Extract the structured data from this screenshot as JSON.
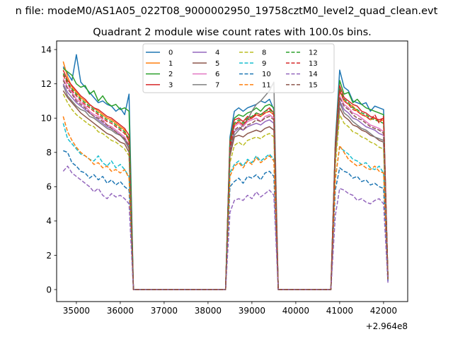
{
  "chart_data": {
    "type": "line",
    "suptitle": "n file: modeM0/AS1A05_022T08_9000002950_19758cztM0_level2_quad_clean.evt",
    "title": "Quadrant 2 module wise count rates with 100.0s bins.",
    "xlabel": "",
    "ylabel": "",
    "x_offset_label": "+2.964e8",
    "xlim": [
      34550,
      42550
    ],
    "ylim": [
      -0.7,
      14.5
    ],
    "xticks": [
      35000,
      36000,
      37000,
      38000,
      39000,
      40000,
      41000,
      42000
    ],
    "xtick_labels": [
      "35000",
      "36000",
      "37000",
      "38000",
      "39000",
      "40000",
      "41000",
      "42000"
    ],
    "yticks": [
      0,
      2,
      4,
      6,
      8,
      10,
      12,
      14
    ],
    "ytick_labels": [
      "0",
      "2",
      "4",
      "6",
      "8",
      "10",
      "12",
      "14"
    ],
    "grid": false,
    "legend_position": "upper center",
    "legend_columns": 4,
    "segments": [
      {
        "start": 34700,
        "end": 36200,
        "step": 100
      },
      {
        "start": 38500,
        "end": 39500,
        "step": 100
      },
      {
        "start": 40900,
        "end": 42000,
        "step": 100
      }
    ],
    "gap_x": [
      [
        36300,
        38400
      ],
      [
        39600,
        40800
      ]
    ],
    "end_x": 42100,
    "series": [
      {
        "name": "0",
        "color": "#1f77b4",
        "dash": "solid",
        "seg": [
          [
            13.0,
            12.6,
            12.2,
            13.7,
            12.1,
            11.8,
            11.5,
            11.2,
            10.9,
            11.0,
            10.8,
            10.7,
            10.4,
            10.6,
            10.2,
            11.4
          ],
          [
            8.9,
            10.4,
            10.6,
            10.4,
            10.6,
            10.7,
            10.8,
            11.0,
            10.9,
            11.1,
            10.5
          ],
          [
            8.6,
            12.8,
            11.8,
            11.6,
            11.0,
            10.9,
            10.8,
            10.9,
            10.4,
            10.7,
            10.6,
            10.5
          ]
        ],
        "end": 0.5
      },
      {
        "name": "1",
        "color": "#ff7f0e",
        "dash": "solid",
        "seg": [
          [
            13.3,
            12.4,
            11.8,
            11.5,
            11.2,
            11.0,
            10.8,
            10.6,
            10.4,
            10.2,
            10.0,
            9.9,
            9.7,
            9.5,
            9.3,
            8.6
          ],
          [
            8.5,
            9.6,
            9.8,
            9.6,
            9.9,
            10.0,
            10.2,
            10.1,
            10.3,
            10.4,
            10.2
          ],
          [
            8.2,
            11.6,
            11.0,
            10.8,
            10.7,
            10.4,
            10.2,
            10.1,
            9.9,
            10.0,
            9.8,
            9.9
          ]
        ],
        "end": 0.6
      },
      {
        "name": "2",
        "color": "#2ca02c",
        "dash": "solid",
        "seg": [
          [
            12.9,
            12.7,
            12.5,
            12.0,
            11.8,
            11.9,
            11.4,
            11.6,
            11.0,
            11.3,
            10.9,
            10.7,
            10.8,
            10.5,
            10.6,
            10.4
          ],
          [
            8.7,
            10.0,
            10.2,
            10.1,
            10.3,
            10.4,
            10.6,
            10.4,
            10.7,
            10.8,
            10.6
          ],
          [
            8.4,
            12.2,
            11.4,
            11.5,
            10.9,
            11.1,
            10.8,
            10.6,
            10.5,
            10.4,
            10.3,
            10.2
          ]
        ],
        "end": 0.6
      },
      {
        "name": "3",
        "color": "#d62728",
        "dash": "solid",
        "seg": [
          [
            12.8,
            12.2,
            11.9,
            11.6,
            11.3,
            11.1,
            10.8,
            10.6,
            10.5,
            10.3,
            10.1,
            10.0,
            9.8,
            9.6,
            9.4,
            9.0
          ],
          [
            8.6,
            9.9,
            10.0,
            9.8,
            10.1,
            10.0,
            10.3,
            10.2,
            10.4,
            10.6,
            10.3
          ],
          [
            8.3,
            11.9,
            11.2,
            11.0,
            10.8,
            10.7,
            10.4,
            10.3,
            10.1,
            10.0,
            9.9,
            10.0
          ]
        ],
        "end": 0.7
      },
      {
        "name": "4",
        "color": "#9467bd",
        "dash": "solid",
        "seg": [
          [
            12.0,
            11.5,
            11.2,
            10.9,
            10.7,
            10.5,
            10.3,
            10.1,
            9.9,
            9.7,
            9.5,
            9.4,
            9.2,
            9.0,
            8.8,
            8.3
          ],
          [
            8.0,
            9.2,
            9.4,
            9.3,
            9.5,
            9.6,
            9.7,
            9.6,
            9.8,
            9.9,
            9.7
          ],
          [
            7.9,
            11.0,
            10.5,
            10.3,
            10.0,
            9.9,
            9.7,
            9.5,
            9.4,
            9.3,
            9.1,
            9.0
          ]
        ],
        "end": 0.6
      },
      {
        "name": "5",
        "color": "#8c564b",
        "dash": "solid",
        "seg": [
          [
            11.6,
            11.2,
            10.9,
            10.6,
            10.3,
            10.1,
            9.9,
            9.7,
            9.5,
            9.3,
            9.1,
            9.0,
            8.8,
            8.6,
            8.5,
            8.0
          ],
          [
            7.8,
            8.9,
            9.0,
            8.9,
            9.1,
            9.2,
            9.3,
            9.2,
            9.4,
            9.5,
            9.3
          ],
          [
            7.6,
            10.6,
            10.1,
            9.9,
            9.6,
            9.5,
            9.3,
            9.2,
            9.0,
            8.9,
            8.7,
            8.6
          ]
        ],
        "end": 0.6
      },
      {
        "name": "6",
        "color": "#e377c2",
        "dash": "solid",
        "seg": [
          [
            12.3,
            11.8,
            11.5,
            11.1,
            10.9,
            10.7,
            10.4,
            10.2,
            10.1,
            9.9,
            9.6,
            9.5,
            9.3,
            9.1,
            8.9,
            8.4
          ],
          [
            8.2,
            9.5,
            9.7,
            9.5,
            9.8,
            9.9,
            10.0,
            9.8,
            10.1,
            10.2,
            10.0
          ],
          [
            8.1,
            11.3,
            10.8,
            10.6,
            10.3,
            10.2,
            10.0,
            9.8,
            9.6,
            9.5,
            9.4,
            9.2
          ]
        ],
        "end": 0.6
      },
      {
        "name": "7",
        "color": "#7f7f7f",
        "dash": "solid",
        "seg": [
          [
            11.9,
            11.3,
            11.0,
            10.7,
            10.5,
            10.4,
            10.1,
            10.0,
            9.8,
            9.6,
            9.4,
            9.3,
            9.1,
            9.0,
            8.7,
            8.2
          ],
          [
            8.4,
            9.0,
            9.3,
            9.6,
            9.9,
            10.4,
            10.8,
            11.0,
            11.3,
            11.6,
            12.1
          ],
          [
            7.8,
            10.9,
            10.3,
            10.1,
            9.8,
            9.6,
            9.4,
            9.3,
            9.1,
            8.9,
            8.8,
            8.7
          ]
        ],
        "end": 0.6
      },
      {
        "name": "8",
        "color": "#bcbd22",
        "dash": "dashed",
        "seg": [
          [
            11.4,
            10.9,
            10.5,
            10.2,
            10.0,
            9.8,
            9.6,
            9.5,
            9.2,
            9.1,
            8.9,
            8.7,
            8.6,
            8.4,
            8.2,
            7.8
          ],
          [
            7.4,
            8.4,
            8.6,
            8.4,
            8.7,
            8.8,
            8.9,
            8.8,
            9.0,
            9.1,
            8.9
          ],
          [
            7.2,
            10.2,
            9.7,
            9.5,
            9.2,
            9.1,
            8.9,
            8.8,
            8.6,
            8.5,
            8.3,
            8.2
          ]
        ],
        "end": 0.6
      },
      {
        "name": "9",
        "color": "#17becf",
        "dash": "dashed",
        "seg": [
          [
            9.7,
            8.8,
            8.5,
            8.2,
            7.9,
            7.8,
            7.6,
            7.5,
            7.8,
            7.4,
            7.2,
            7.5,
            7.1,
            7.3,
            7.0,
            6.6
          ],
          [
            6.8,
            7.3,
            7.5,
            7.2,
            7.6,
            7.4,
            7.8,
            7.5,
            7.7,
            7.9,
            7.6
          ],
          [
            6.5,
            8.3,
            8.1,
            7.9,
            7.6,
            7.5,
            7.3,
            7.4,
            7.1,
            7.0,
            7.2,
            6.8
          ]
        ],
        "end": 0.5
      },
      {
        "name": "10",
        "color": "#1f77b4",
        "dash": "dashed",
        "seg": [
          [
            8.1,
            8.0,
            7.4,
            7.2,
            6.9,
            6.8,
            6.5,
            6.7,
            6.4,
            6.6,
            6.2,
            6.4,
            6.1,
            6.3,
            6.0,
            5.8
          ],
          [
            6.0,
            6.3,
            6.5,
            6.2,
            6.6,
            6.5,
            6.7,
            6.4,
            6.8,
            6.9,
            6.6
          ],
          [
            5.8,
            7.1,
            6.9,
            6.8,
            6.5,
            6.6,
            6.3,
            6.4,
            6.1,
            6.2,
            6.0,
            5.9
          ]
        ],
        "end": 0.5
      },
      {
        "name": "11",
        "color": "#ff7f0e",
        "dash": "dashed",
        "seg": [
          [
            10.1,
            9.2,
            8.7,
            8.3,
            8.0,
            7.8,
            7.6,
            7.3,
            7.4,
            7.1,
            7.2,
            6.9,
            7.0,
            6.8,
            7.0,
            6.5
          ],
          [
            6.6,
            7.2,
            7.4,
            7.1,
            7.5,
            7.3,
            7.7,
            7.4,
            7.6,
            7.8,
            7.5
          ],
          [
            6.4,
            8.4,
            8.0,
            7.6,
            7.4,
            7.2,
            7.3,
            7.1,
            7.0,
            7.2,
            6.9,
            6.8
          ]
        ],
        "end": 0.6
      },
      {
        "name": "12",
        "color": "#2ca02c",
        "dash": "dashed",
        "seg": [
          [
            12.6,
            12.1,
            11.7,
            11.4,
            11.1,
            10.9,
            10.7,
            10.5,
            10.3,
            10.1,
            9.9,
            9.8,
            9.6,
            9.4,
            9.2,
            8.8
          ],
          [
            8.5,
            9.7,
            9.9,
            9.7,
            10.0,
            10.1,
            10.3,
            10.2,
            10.4,
            10.5,
            10.3
          ],
          [
            8.3,
            11.7,
            11.1,
            10.9,
            10.6,
            10.5,
            10.3,
            10.2,
            10.0,
            9.9,
            9.8,
            9.7
          ]
        ],
        "end": 0.7
      },
      {
        "name": "13",
        "color": "#d62728",
        "dash": "dashed",
        "seg": [
          [
            12.5,
            12.0,
            11.6,
            11.3,
            11.0,
            10.8,
            10.6,
            10.4,
            10.2,
            10.0,
            9.8,
            9.7,
            9.5,
            9.3,
            9.1,
            8.7
          ],
          [
            8.4,
            9.6,
            9.8,
            9.6,
            9.9,
            10.0,
            10.2,
            10.1,
            10.3,
            10.4,
            10.2
          ],
          [
            8.2,
            11.6,
            11.0,
            10.8,
            10.5,
            10.4,
            10.2,
            10.1,
            9.9,
            10.2,
            9.7,
            10.1
          ]
        ],
        "end": 0.7
      },
      {
        "name": "14",
        "color": "#9467bd",
        "dash": "dashed",
        "seg": [
          [
            6.9,
            7.2,
            6.8,
            6.6,
            6.4,
            6.2,
            6.0,
            5.7,
            5.9,
            5.5,
            5.3,
            5.6,
            5.4,
            5.5,
            5.3,
            5.0
          ],
          [
            4.5,
            5.2,
            5.3,
            5.2,
            5.5,
            5.3,
            5.7,
            5.4,
            5.6,
            5.8,
            5.5
          ],
          [
            4.3,
            5.9,
            5.8,
            5.6,
            5.5,
            5.2,
            5.3,
            5.1,
            5.0,
            5.2,
            5.3,
            5.0
          ]
        ],
        "end": 0.4
      },
      {
        "name": "15",
        "color": "#8c564b",
        "dash": "dashed",
        "seg": [
          [
            12.2,
            11.7,
            11.4,
            11.0,
            10.8,
            10.6,
            10.3,
            10.1,
            10.0,
            9.8,
            9.6,
            9.4,
            9.2,
            9.0,
            8.8,
            8.4
          ],
          [
            8.1,
            9.3,
            9.5,
            9.3,
            9.6,
            9.7,
            9.9,
            9.8,
            10.0,
            10.1,
            9.9
          ],
          [
            8.0,
            11.2,
            10.7,
            10.5,
            10.2,
            10.0,
            9.9,
            9.7,
            9.5,
            9.4,
            9.3,
            9.1
          ]
        ],
        "end": 0.6
      }
    ]
  }
}
